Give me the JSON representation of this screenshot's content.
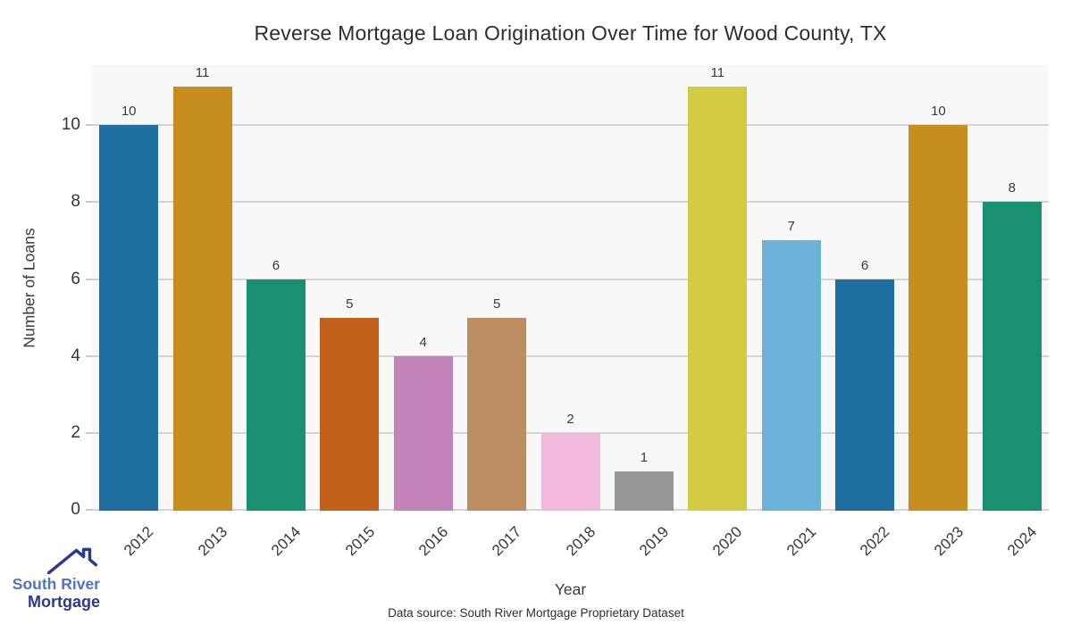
{
  "title": "Reverse Mortgage Loan Origination Over Time for Wood County, TX",
  "footer": "Data source: South River Mortgage Proprietary Dataset",
  "logo": {
    "name_top": "South River",
    "name_bottom": "Mortgage",
    "color_top": "#5173c0",
    "color_bottom": "#2b3a8f"
  },
  "chart_data": {
    "type": "bar",
    "title": "Reverse Mortgage Loan Origination Over Time for Wood County, TX",
    "xlabel": "Year",
    "ylabel": "Number of Loans",
    "categories": [
      "2012",
      "2013",
      "2014",
      "2015",
      "2016",
      "2017",
      "2018",
      "2019",
      "2020",
      "2021",
      "2022",
      "2023",
      "2024"
    ],
    "values": [
      10,
      11,
      6,
      5,
      4,
      5,
      2,
      1,
      11,
      7,
      6,
      10,
      8
    ],
    "bar_colors": [
      "#1e6f9f",
      "#c68e1f",
      "#1a9070",
      "#c2611c",
      "#c283b9",
      "#bd8d62",
      "#f2b8dc",
      "#979797",
      "#d2cb41",
      "#6cb2d8",
      "#1e6f9f",
      "#c68e1f",
      "#1a9070"
    ],
    "value_labels_shown": true,
    "yticks": [
      0,
      2,
      4,
      6,
      8,
      10
    ],
    "ylim": [
      0,
      11.56
    ],
    "grid": "horizontal",
    "legend": "none",
    "plot_background": "#f8f8f8",
    "gridline_color": "#d4d4d4"
  }
}
